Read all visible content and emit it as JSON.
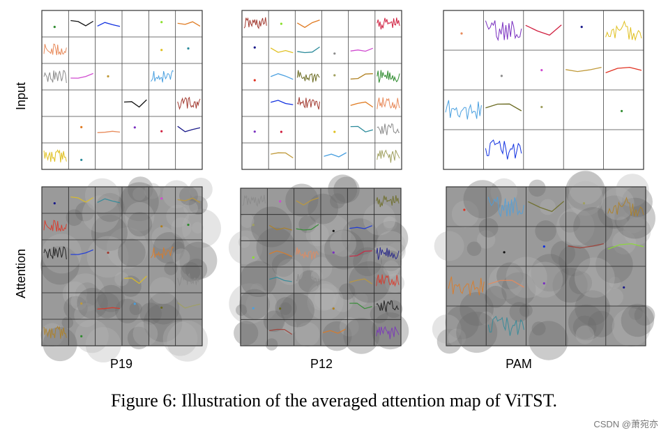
{
  "figure": {
    "row_labels": {
      "input": "Input",
      "attention": "Attention"
    },
    "datasets": [
      {
        "name": "P19",
        "grid": "6x6"
      },
      {
        "name": "P12",
        "grid": "6x6"
      },
      {
        "name": "PAM",
        "grid": "4x5"
      }
    ],
    "caption": "Figure 6: Illustration of the averaged attention map of ViTST."
  },
  "watermark": "CSDN @萧宛亦",
  "colors": {
    "series": [
      "#2e8b2e",
      "#111111",
      "#1030e0",
      "#a23a30",
      "#8be02e",
      "#e07a20",
      "#e88a5a",
      "#7a30c0",
      "#d02040",
      "#1a1a8a",
      "#e0c020",
      "#2a8a9a",
      "#8a8a8a",
      "#d04ad0",
      "#c09a3a",
      "#e03020",
      "#4aa0e0",
      "#6a6a20",
      "#a0a060",
      "#b08020"
    ],
    "border": "#333333",
    "attention_light": "#9a9a9a",
    "attention_dark": "#3a3a3a"
  }
}
